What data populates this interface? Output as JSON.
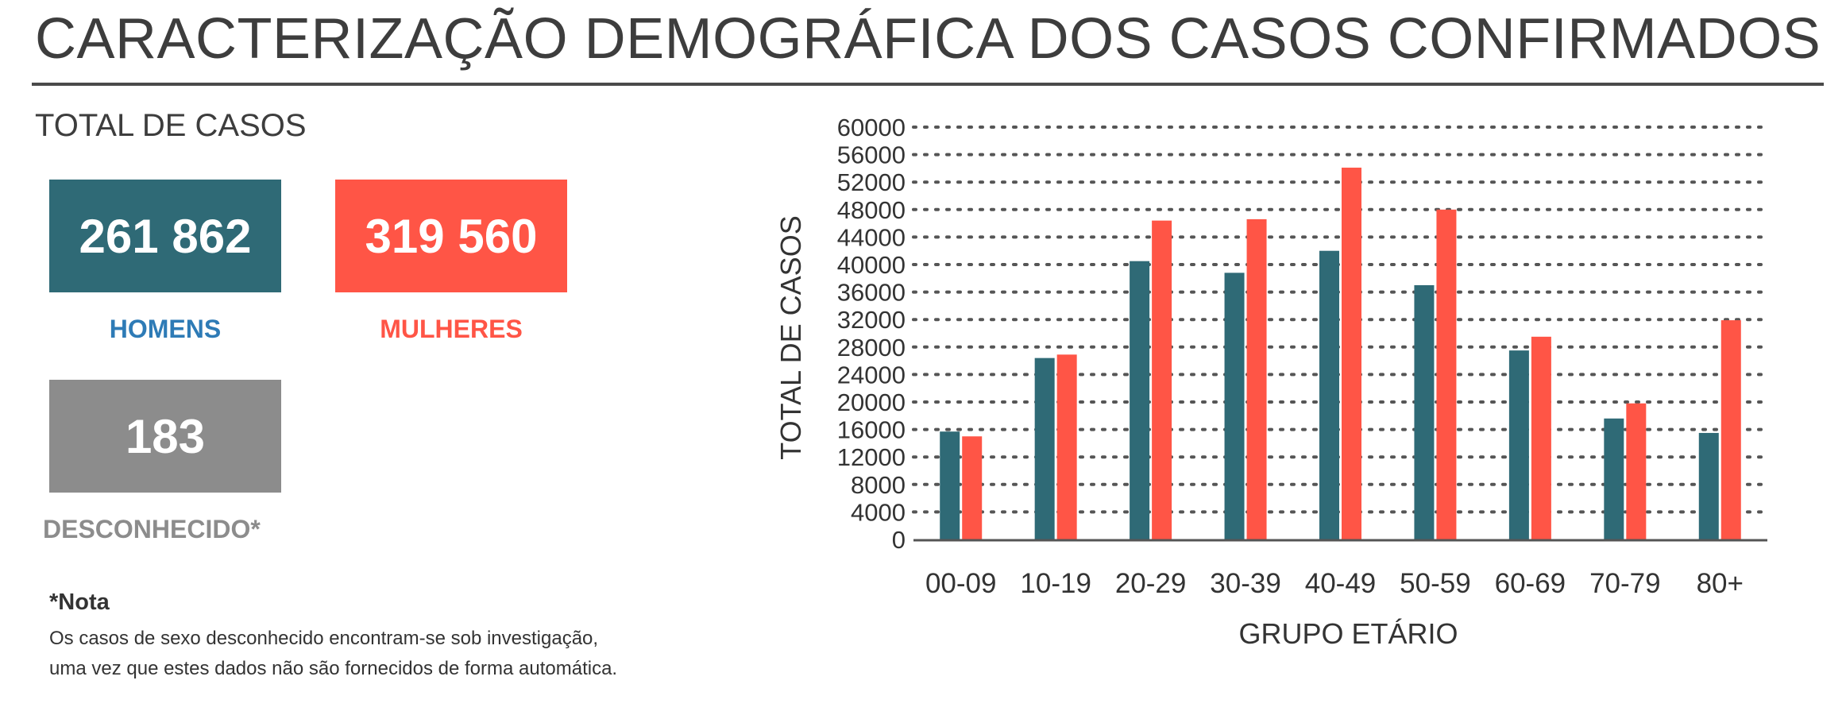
{
  "header": {
    "title": "CARACTERIZAÇÃO DEMOGRÁFICA DOS CASOS CONFIRMADOS",
    "subtitle": "TOTAL DE CASOS"
  },
  "totals": {
    "men": {
      "value": "261 862",
      "label": "HOMENS",
      "color": "#2f6a76",
      "label_color": "#2e7bb6"
    },
    "women": {
      "value": "319 560",
      "label": "MULHERES",
      "color": "#ff5546",
      "label_color": "#ff5546"
    },
    "unknown": {
      "value": "183",
      "label": "DESCONHECIDO*",
      "color": "#8c8c8c",
      "label_color": "#8c8c8c"
    }
  },
  "note": {
    "title": "*Nota",
    "line1": "Os casos de sexo desconhecido encontram-se sob investigação,",
    "line2": "uma vez que estes dados não são fornecidos de forma automática."
  },
  "chart_data": {
    "type": "bar",
    "categories": [
      "00-09",
      "10-19",
      "20-29",
      "30-39",
      "40-49",
      "50-59",
      "60-69",
      "70-79",
      "80+"
    ],
    "series": [
      {
        "values": [
          15700,
          26400,
          40500,
          38800,
          42000,
          37000,
          27500,
          17600,
          15500
        ],
        "color": "#2f6a76"
      },
      {
        "values": [
          15000,
          26900,
          46400,
          46600,
          54100,
          48000,
          29500,
          19800,
          31900
        ],
        "color": "#ff5546"
      }
    ],
    "xlabel": "GRUPO ETÁRIO",
    "ylabel": "TOTAL DE CASOS",
    "ylim": [
      0,
      60000
    ],
    "yticks": [
      "0",
      "4000",
      "8000",
      "12000",
      "16000",
      "20000",
      "24000",
      "28000",
      "32000",
      "36000",
      "40000",
      "44000",
      "48000",
      "52000",
      "56000",
      "60000"
    ],
    "grid": true
  }
}
